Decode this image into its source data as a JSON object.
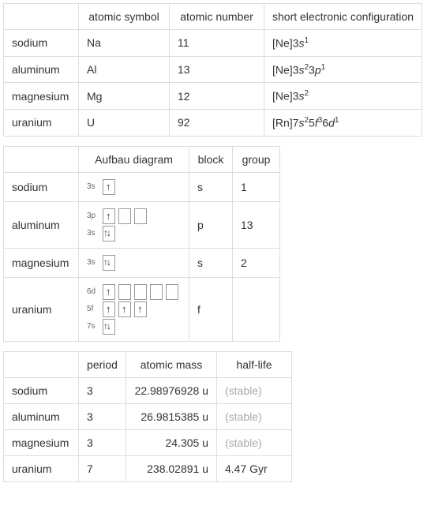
{
  "table1": {
    "headers": [
      "",
      "atomic symbol",
      "atomic number",
      "short electronic configuration"
    ],
    "rows": [
      {
        "name": "sodium",
        "symbol": "Na",
        "number": "11",
        "config_base": "[Ne]3",
        "config_parts": [
          {
            "letter": "s",
            "sup": "1"
          }
        ]
      },
      {
        "name": "aluminum",
        "symbol": "Al",
        "number": "13",
        "config_base": "[Ne]3",
        "config_parts": [
          {
            "letter": "s",
            "sup": "2"
          },
          {
            "letter2": "3",
            "letter": "p",
            "sup": "1"
          }
        ]
      },
      {
        "name": "magnesium",
        "symbol": "Mg",
        "number": "12",
        "config_base": "[Ne]3",
        "config_parts": [
          {
            "letter": "s",
            "sup": "2"
          }
        ]
      },
      {
        "name": "uranium",
        "symbol": "U",
        "number": "92",
        "config_base": "[Rn]7",
        "config_parts": [
          {
            "letter": "s",
            "sup": "2"
          },
          {
            "letter2": "5",
            "letter": "f",
            "sup": "3"
          },
          {
            "letter2": "6",
            "letter": "d",
            "sup": "1"
          }
        ]
      }
    ]
  },
  "table2": {
    "headers": [
      "",
      "Aufbau diagram",
      "block",
      "group"
    ],
    "rows": [
      {
        "name": "sodium",
        "block": "s",
        "group": "1"
      },
      {
        "name": "aluminum",
        "block": "p",
        "group": "13"
      },
      {
        "name": "magnesium",
        "block": "s",
        "group": "2"
      },
      {
        "name": "uranium",
        "block": "f",
        "group": ""
      }
    ],
    "orbital_labels": {
      "3s": "3s",
      "3p": "3p",
      "6d": "6d",
      "5f": "5f",
      "7s": "7s"
    }
  },
  "table3": {
    "headers": [
      "",
      "period",
      "atomic mass",
      "half-life"
    ],
    "rows": [
      {
        "name": "sodium",
        "period": "3",
        "mass": "22.98976928 u",
        "halflife": "(stable)",
        "stable": true
      },
      {
        "name": "aluminum",
        "period": "3",
        "mass": "26.9815385 u",
        "halflife": "(stable)",
        "stable": true
      },
      {
        "name": "magnesium",
        "period": "3",
        "mass": "24.305 u",
        "halflife": "(stable)",
        "stable": true
      },
      {
        "name": "uranium",
        "period": "7",
        "mass": "238.02891 u",
        "halflife": "4.47 Gyr",
        "stable": false
      }
    ]
  }
}
